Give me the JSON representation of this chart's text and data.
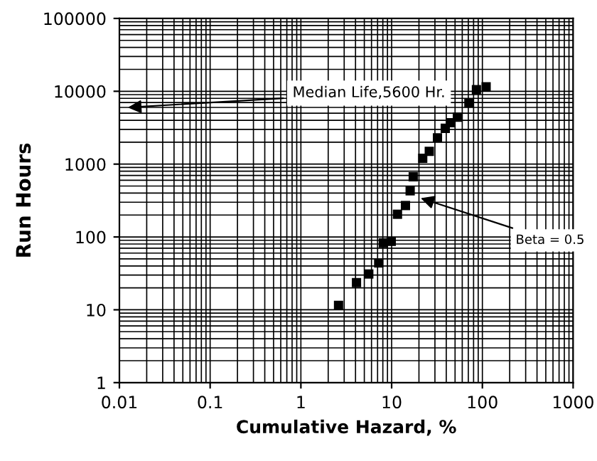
{
  "chart_data": {
    "type": "scatter",
    "xlabel": "Cumulative Hazard, %",
    "ylabel": "Run Hours",
    "x": [
      2.6,
      4.1,
      5.6,
      7.2,
      8.1,
      9.9,
      11.6,
      14.2,
      16,
      17.3,
      22,
      26,
      32,
      39,
      45,
      53,
      71,
      86,
      110
    ],
    "values": [
      11.5,
      23.6,
      31,
      44,
      83,
      87,
      205,
      270,
      430,
      670,
      1200,
      1500,
      2300,
      3100,
      3700,
      4400,
      6900,
      10500,
      11500
    ],
    "color": "#000000",
    "marker": "square",
    "log": "xy",
    "grid": true,
    "xlim": [
      0.01,
      1000
    ],
    "ylim": [
      1,
      100000
    ],
    "xticks": [
      0.01,
      0.1,
      1,
      10,
      100,
      1000
    ],
    "yticks": [
      1,
      10,
      100,
      1000,
      10000,
      100000
    ],
    "annotations": [
      "Median Life,5600 Hr.",
      {
        "text": "Beta = 0.5",
        "x": 19,
        "y": 355
      }
    ]
  }
}
